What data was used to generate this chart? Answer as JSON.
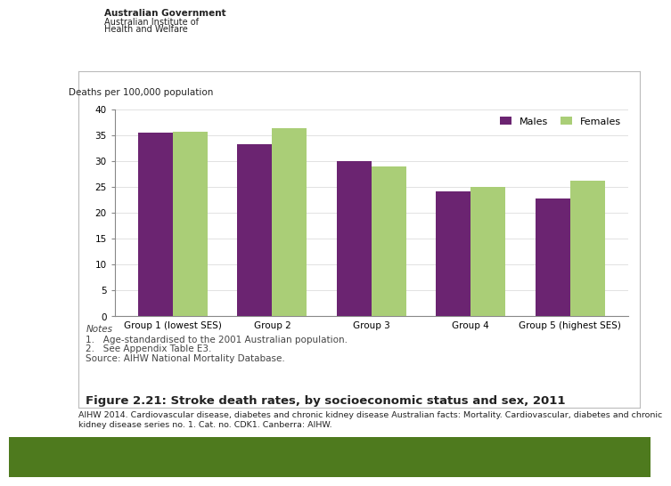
{
  "categories": [
    "Group 1 (lowest SES)",
    "Group 2",
    "Group 3",
    "Group 4",
    "Group 5 (highest SES)"
  ],
  "males": [
    35.5,
    33.2,
    30.0,
    24.2,
    22.7
  ],
  "females": [
    35.7,
    36.4,
    28.9,
    25.0,
    26.2
  ],
  "male_color": "#6B2471",
  "female_color": "#AACE77",
  "ylabel": "Deaths per 100,000 population",
  "ylim": [
    0,
    40
  ],
  "yticks": [
    0,
    5,
    10,
    15,
    20,
    25,
    30,
    35,
    40
  ],
  "legend_labels": [
    "Males",
    "Females"
  ],
  "notes_title": "Notes",
  "note1": "1.   Age-standardised to the 2001 Australian population.",
  "note2": "2.   See Appendix Table E3.",
  "source": "Source: AIHW National Mortality Database.",
  "figure_title": "Figure 2.21: Stroke death rates, by socioeconomic status and sex, 2011",
  "caption_line1": "AIHW 2014. Cardiovascular disease, diabetes and chronic kidney disease Australian facts: Mortality. Cardiovascular, diabetes and chronic",
  "caption_line2": "kidney disease series no. 1. Cat. no. CDK1. Canberra: AIHW.",
  "header_line1": "Australian Government",
  "header_line2": "Australian Institute of",
  "header_line3": "Health and Welfare",
  "bar_width": 0.35,
  "green_color": "#4E7A1E",
  "border_color": "#BBBBBB",
  "bg_color": "#FFFFFF",
  "grid_color": "#DDDDDD",
  "axis_color": "#888888",
  "text_color": "#222222",
  "note_color": "#444444"
}
